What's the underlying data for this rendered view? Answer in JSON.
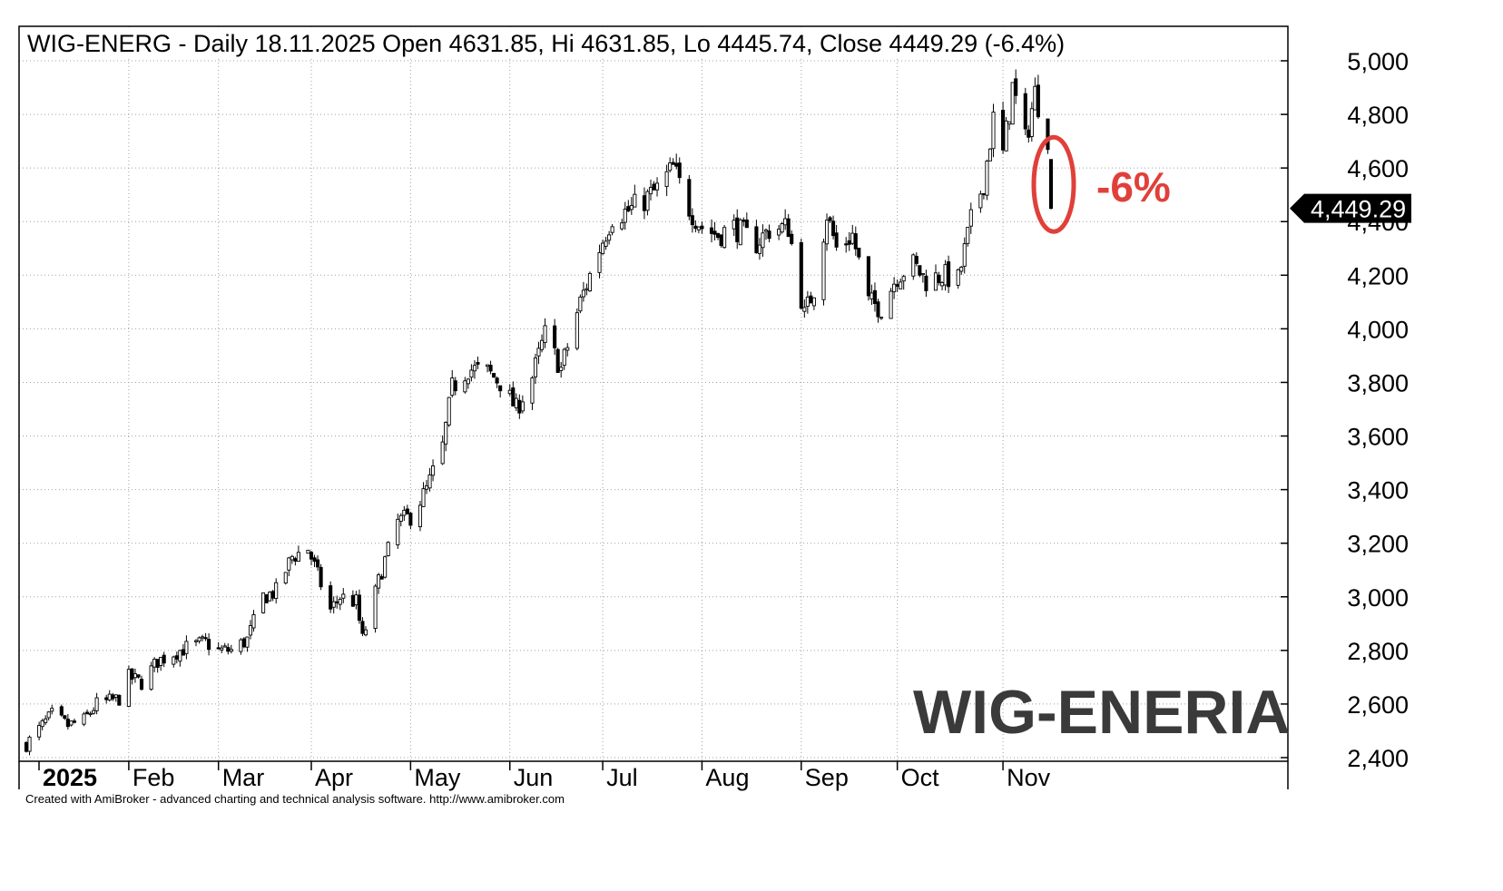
{
  "chart_data": {
    "type": "candlestick",
    "title": "WIG-ENERG - Daily 18.11.2025 Open 4631.85, Hi 4631.85, Lo 4445.74, Close 4449.29 (-6.4%)",
    "xlabel": "",
    "ylabel": "",
    "ylim": [
      2400,
      5000
    ],
    "y_scale": "linear",
    "y_ticks": [
      5000,
      4800,
      4600,
      4400,
      4200,
      4000,
      3800,
      3600,
      3400,
      3200,
      3000,
      2800,
      2600,
      2400
    ],
    "y_tick_labels": [
      "5,000",
      "4,800",
      "4,600",
      "4,400",
      "4,200",
      "4,000",
      "3,800",
      "3,600",
      "3,400",
      "3,200",
      "3,000",
      "2,800",
      "2,600",
      "2,400"
    ],
    "x_labels": [
      "2025",
      "Feb",
      "Mar",
      "Apr",
      "May",
      "Jun",
      "Jul",
      "Aug",
      "Sep",
      "Oct",
      "Nov"
    ],
    "x_label_dates": [
      "2025-01-02",
      "2025-02-03",
      "2025-03-03",
      "2025-04-01",
      "2025-05-02",
      "2025-06-02",
      "2025-07-01",
      "2025-08-01",
      "2025-09-01",
      "2025-10-01",
      "2025-11-03"
    ],
    "grid": true,
    "last_price_label": "4,449.29",
    "last_close": 4449.29,
    "last_bar": {
      "date": "2025-11-18",
      "open": 4631.85,
      "high": 4631.85,
      "low": 4445.74,
      "close": 4449.29,
      "change": "-6.4%"
    },
    "annotation": "-6%",
    "watermark": "WIG-ENERIA",
    "credit": "Created with AmiBroker - advanced charting and technical analysis software. http://www.amibroker.com",
    "colors": {
      "up": "#ffffff",
      "down": "#000000",
      "grid": "#a0a0a0",
      "annotation": "#e0403a",
      "watermark": "#3a3a3a"
    },
    "series": [
      {
        "close_path": [
          [
            "2025-01-02",
            2450
          ],
          [
            "2025-01-07",
            2520
          ],
          [
            "2025-01-10",
            2560
          ],
          [
            "2025-01-15",
            2520
          ],
          [
            "2025-01-20",
            2540
          ],
          [
            "2025-01-24",
            2600
          ],
          [
            "2025-01-31",
            2620
          ],
          [
            "2025-02-03",
            2700
          ],
          [
            "2025-02-07",
            2680
          ],
          [
            "2025-02-12",
            2760
          ],
          [
            "2025-02-17",
            2790
          ],
          [
            "2025-02-21",
            2810
          ],
          [
            "2025-02-27",
            2830
          ],
          [
            "2025-03-03",
            2800
          ],
          [
            "2025-03-07",
            2800
          ],
          [
            "2025-03-12",
            2840
          ],
          [
            "2025-03-17",
            3000
          ],
          [
            "2025-03-21",
            3020
          ],
          [
            "2025-03-26",
            3150
          ],
          [
            "2025-03-31",
            3180
          ],
          [
            "2025-04-03",
            3080
          ],
          [
            "2025-04-07",
            2950
          ],
          [
            "2025-04-10",
            3000
          ],
          [
            "2025-04-15",
            2980
          ],
          [
            "2025-04-17",
            2840
          ],
          [
            "2025-04-23",
            3100
          ],
          [
            "2025-04-28",
            3280
          ],
          [
            "2025-05-02",
            3300
          ],
          [
            "2025-05-07",
            3400
          ],
          [
            "2025-05-12",
            3560
          ],
          [
            "2025-05-15",
            3780
          ],
          [
            "2025-05-20",
            3850
          ],
          [
            "2025-05-26",
            3840
          ],
          [
            "2025-05-30",
            3800
          ],
          [
            "2025-06-04",
            3700
          ],
          [
            "2025-06-09",
            3820
          ],
          [
            "2025-06-13",
            3980
          ],
          [
            "2025-06-18",
            3850
          ],
          [
            "2025-06-24",
            4100
          ],
          [
            "2025-06-30",
            4300
          ],
          [
            "2025-07-04",
            4420
          ],
          [
            "2025-07-09",
            4440
          ],
          [
            "2025-07-14",
            4480
          ],
          [
            "2025-07-18",
            4520
          ],
          [
            "2025-07-23",
            4600
          ],
          [
            "2025-07-28",
            4450
          ],
          [
            "2025-08-01",
            4380
          ],
          [
            "2025-08-06",
            4350
          ],
          [
            "2025-08-11",
            4380
          ],
          [
            "2025-08-18",
            4320
          ],
          [
            "2025-08-22",
            4370
          ],
          [
            "2025-08-28",
            4380
          ],
          [
            "2025-09-02",
            4050
          ],
          [
            "2025-09-05",
            4150
          ],
          [
            "2025-09-09",
            4430
          ],
          [
            "2025-09-12",
            4300
          ],
          [
            "2025-09-17",
            4350
          ],
          [
            "2025-09-22",
            4100
          ],
          [
            "2025-09-26",
            4080
          ],
          [
            "2025-10-01",
            4200
          ],
          [
            "2025-10-06",
            4240
          ],
          [
            "2025-10-10",
            4180
          ],
          [
            "2025-10-15",
            4200
          ],
          [
            "2025-10-20",
            4180
          ],
          [
            "2025-10-24",
            4400
          ],
          [
            "2025-10-28",
            4550
          ],
          [
            "2025-10-31",
            4780
          ],
          [
            "2025-11-03",
            4650
          ],
          [
            "2025-11-06",
            4900
          ],
          [
            "2025-11-10",
            4700
          ],
          [
            "2025-11-13",
            4880
          ],
          [
            "2025-11-17",
            4720
          ],
          [
            "2025-11-18",
            4449.29
          ]
        ]
      }
    ]
  }
}
